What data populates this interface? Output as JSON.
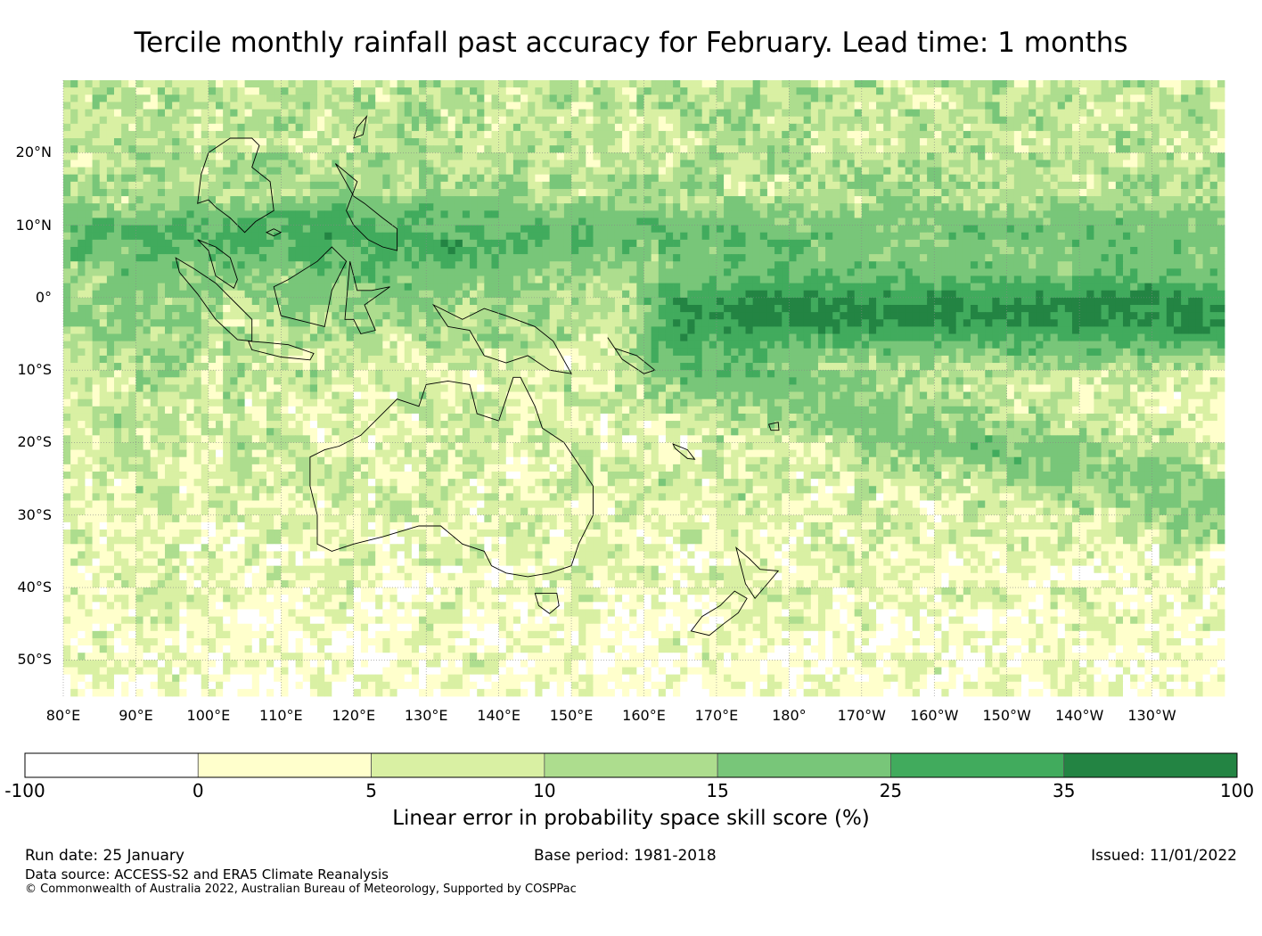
{
  "title": "Tercile monthly rainfall past accuracy for February. Lead time: 1 months",
  "map": {
    "lat_range": [
      -55,
      30
    ],
    "lon_range": [
      80,
      240
    ],
    "lat_ticks": [
      {
        "value": 20,
        "label": "20°N"
      },
      {
        "value": 10,
        "label": "10°N"
      },
      {
        "value": 0,
        "label": "0°"
      },
      {
        "value": -10,
        "label": "10°S"
      },
      {
        "value": -20,
        "label": "20°S"
      },
      {
        "value": -30,
        "label": "30°S"
      },
      {
        "value": -40,
        "label": "40°S"
      },
      {
        "value": -50,
        "label": "50°S"
      }
    ],
    "lon_ticks": [
      {
        "value": 80,
        "label": "80°E"
      },
      {
        "value": 90,
        "label": "90°E"
      },
      {
        "value": 100,
        "label": "100°E"
      },
      {
        "value": 110,
        "label": "110°E"
      },
      {
        "value": 120,
        "label": "120°E"
      },
      {
        "value": 130,
        "label": "130°E"
      },
      {
        "value": 140,
        "label": "140°E"
      },
      {
        "value": 150,
        "label": "150°E"
      },
      {
        "value": 160,
        "label": "160°E"
      },
      {
        "value": 170,
        "label": "170°E"
      },
      {
        "value": 180,
        "label": "180°"
      },
      {
        "value": 190,
        "label": "170°W"
      },
      {
        "value": 200,
        "label": "160°W"
      },
      {
        "value": 210,
        "label": "150°W"
      },
      {
        "value": 220,
        "label": "140°W"
      },
      {
        "value": 230,
        "label": "130°W"
      }
    ]
  },
  "colorbar": {
    "title": "Linear error in probability space skill score (%)",
    "bounds": [
      "-100",
      "0",
      "5",
      "10",
      "15",
      "25",
      "35",
      "100"
    ],
    "colors": [
      "#ffffff",
      "#ffffcc",
      "#d9f0a3",
      "#addd8e",
      "#78c679",
      "#41ab5d",
      "#238443"
    ]
  },
  "footer": {
    "run_date": "Run date: 25 January",
    "base_period": "Base period: 1981-2018",
    "issued": "Issued: 11/01/2022",
    "data_source": "Data source: ACCESS-S2 and ERA5 Climate Reanalysis",
    "copyright": "© Commonwealth of Australia 2022, Australian Bureau of Meteorology, Supported by COSPPac"
  }
}
